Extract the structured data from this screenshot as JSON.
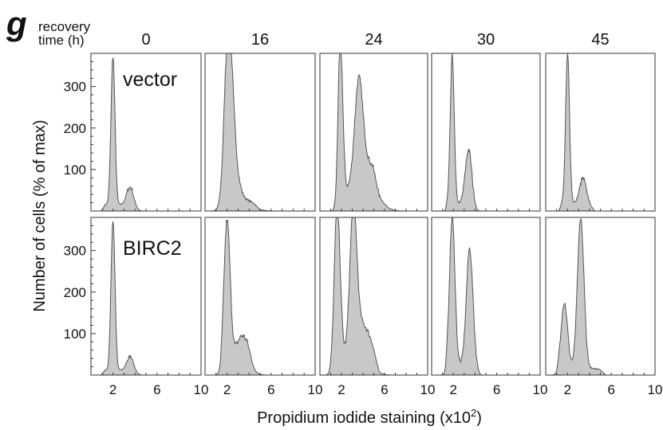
{
  "panel_letter": "g",
  "header": {
    "label_line1": "recovery",
    "label_line2": "time (h)"
  },
  "ylabel": "Number of cells (% of max)",
  "xlabel_main": "Propidium iodide staining (x10",
  "xlabel_sup": "2",
  "xlabel_close": ")",
  "colors": {
    "fill": "#c8c8c8",
    "stroke": "#555555",
    "frame": "#333333"
  },
  "chart_data": {
    "type": "area",
    "grid": false,
    "xlim": [
      0,
      10
    ],
    "ylim": [
      0,
      380
    ],
    "x_ticks": [
      "2",
      "6",
      "10"
    ],
    "y_ticks": [
      "100",
      "200",
      "300"
    ],
    "columns": [
      "0",
      "16",
      "24",
      "30",
      "45"
    ],
    "rows": [
      {
        "label": "vector",
        "panels": [
          {
            "time": "0",
            "peaks": [
              [
                2.0,
                360,
                0.18
              ],
              [
                3.6,
                50,
                0.32
              ]
            ],
            "base": [
              [
                1.0,
                3.9,
                15
              ]
            ]
          },
          {
            "time": "16",
            "peaks": [
              [
                2.1,
                360,
                0.35
              ],
              [
                2.5,
                120,
                0.45
              ],
              [
                3.4,
                18,
                0.9
              ]
            ],
            "base": [
              [
                1.5,
                5.0,
                10
              ]
            ]
          },
          {
            "time": "24",
            "peaks": [
              [
                1.9,
                360,
                0.22
              ],
              [
                3.6,
                235,
                0.38
              ],
              [
                4.5,
                70,
                0.9
              ]
            ],
            "base": [
              [
                1.5,
                5.5,
                45
              ]
            ]
          },
          {
            "time": "30",
            "peaks": [
              [
                1.9,
                360,
                0.18
              ],
              [
                3.4,
                130,
                0.3
              ]
            ],
            "base": [
              [
                1.2,
                4.2,
                18
              ]
            ]
          },
          {
            "time": "45",
            "peaks": [
              [
                2.0,
                360,
                0.18
              ],
              [
                3.4,
                60,
                0.3
              ]
            ],
            "base": [
              [
                1.2,
                4.5,
                18
              ]
            ]
          }
        ]
      },
      {
        "label": "BIRC2",
        "panels": [
          {
            "time": "0",
            "peaks": [
              [
                2.0,
                360,
                0.18
              ],
              [
                3.6,
                38,
                0.32
              ]
            ],
            "base": [
              [
                1.0,
                3.9,
                12
              ]
            ]
          },
          {
            "time": "16",
            "peaks": [
              [
                2.0,
                345,
                0.28
              ],
              [
                3.4,
                70,
                0.6
              ]
            ],
            "base": [
              [
                1.4,
                4.5,
                25
              ]
            ]
          },
          {
            "time": "24",
            "peaks": [
              [
                1.6,
                370,
                0.28
              ],
              [
                3.1,
                345,
                0.32
              ],
              [
                4.0,
                80,
                0.7
              ]
            ],
            "base": [
              [
                1.2,
                5.5,
                40
              ]
            ]
          },
          {
            "time": "30",
            "peaks": [
              [
                1.9,
                355,
                0.25
              ],
              [
                3.5,
                280,
                0.3
              ]
            ],
            "base": [
              [
                1.2,
                4.5,
                25
              ]
            ]
          },
          {
            "time": "45",
            "peaks": [
              [
                1.7,
                160,
                0.3
              ],
              [
                3.2,
                360,
                0.3
              ]
            ],
            "base": [
              [
                1.0,
                5.5,
                15
              ]
            ]
          }
        ]
      }
    ]
  }
}
